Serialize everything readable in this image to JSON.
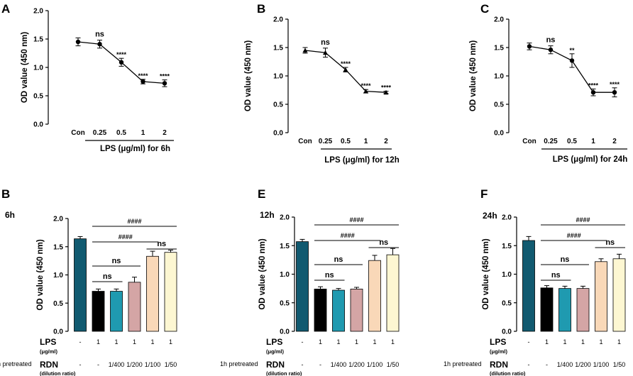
{
  "figure": {
    "line_panels": [
      {
        "letter": "A",
        "title": "",
        "xlabel": "LPS (μg/ml) for 6h",
        "ylabel": "OD value (450 nm)",
        "ticks": [
          "0.0",
          "0.5",
          "1.0",
          "1.5",
          "2.0"
        ],
        "ylim": [
          0,
          2.0
        ],
        "categories": [
          "Con",
          "0.25",
          "0.5",
          "1",
          "2"
        ],
        "values": [
          1.45,
          1.41,
          1.09,
          0.75,
          0.72
        ],
        "errors": [
          0.07,
          0.07,
          0.07,
          0.04,
          0.06
        ],
        "significance": [
          "",
          "ns",
          "****",
          "****",
          "****"
        ],
        "marker": "circle"
      },
      {
        "letter": "B",
        "title": "",
        "xlabel": "LPS (μg/ml) for 12h",
        "ylabel": "OD value (450 nm)",
        "ticks": [
          "0.0",
          "0.5",
          "1.0",
          "1.5",
          "2.0"
        ],
        "ylim": [
          0,
          2.0
        ],
        "categories": [
          "Con",
          "0.25",
          "0.5",
          "1",
          "2"
        ],
        "values": [
          1.45,
          1.41,
          1.11,
          0.73,
          0.71
        ],
        "errors": [
          0.05,
          0.08,
          0.04,
          0.03,
          0.02
        ],
        "significance": [
          "",
          "ns",
          "****",
          "****",
          "****"
        ],
        "marker": "triangle"
      },
      {
        "letter": "C",
        "title": "",
        "xlabel": "LPS (μg/ml) for 24h",
        "ylabel": "OD value (450 nm)",
        "ticks": [
          "0.0",
          "0.5",
          "1.0",
          "1.5",
          "2.0"
        ],
        "ylim": [
          0,
          2.0
        ],
        "categories": [
          "Con",
          "0.25",
          "0.5",
          "1",
          "2"
        ],
        "values": [
          1.52,
          1.46,
          1.27,
          0.71,
          0.71
        ],
        "errors": [
          0.06,
          0.07,
          0.12,
          0.06,
          0.08
        ],
        "significance": [
          "",
          "ns",
          "**",
          "****",
          "****"
        ],
        "marker": "circle"
      }
    ],
    "bar_panels": [
      {
        "letter": "B",
        "title": "6h",
        "values": [
          1.64,
          0.71,
          0.71,
          0.87,
          1.33,
          1.4
        ],
        "errors": [
          0.04,
          0.04,
          0.04,
          0.09,
          0.09,
          0.04
        ]
      },
      {
        "letter": "E",
        "title": "12h",
        "values": [
          1.57,
          0.74,
          0.72,
          0.74,
          1.24,
          1.34
        ],
        "errors": [
          0.04,
          0.04,
          0.03,
          0.03,
          0.09,
          0.11
        ]
      },
      {
        "letter": "F",
        "title": "24h",
        "values": [
          1.59,
          0.76,
          0.75,
          0.75,
          1.22,
          1.27
        ],
        "errors": [
          0.07,
          0.04,
          0.04,
          0.04,
          0.05,
          0.08
        ]
      }
    ],
    "bar_common": {
      "ylabel": "OD value (450 nm)",
      "ticks": [
        "0.0",
        "0.5",
        "1.0",
        "1.5",
        "2.0"
      ],
      "ylim": [
        0,
        2.0
      ],
      "colors": [
        "#115a70",
        "#000000",
        "#1f9ab0",
        "#d4a5a5",
        "#f9d8b8",
        "#fdf7d2"
      ],
      "lps_label": "LPS",
      "lps_unit": "(μg/ml)",
      "lps_values": [
        "-",
        "1",
        "1",
        "1",
        "1",
        "1"
      ],
      "pretreat_label": "1h pretreated",
      "rdn_label": "RDN",
      "rdn_unit": "(dilution ratio)",
      "rdn_values": [
        "-",
        "-",
        "1/400",
        "1/200",
        "1/100",
        "1/50"
      ],
      "brackets": [
        {
          "from": 1,
          "to": 5,
          "label": "####"
        },
        {
          "from": 1,
          "to": 4,
          "label": "####"
        },
        {
          "from": 4,
          "to": 5,
          "label": "ns"
        },
        {
          "from": 1,
          "to": 3,
          "label": "ns"
        },
        {
          "from": 1,
          "to": 2,
          "label": "ns"
        }
      ]
    }
  },
  "chart_data": [
    {
      "type": "line",
      "title": "A",
      "categories": [
        "Con",
        "0.25",
        "0.5",
        "1",
        "2"
      ],
      "values": [
        1.45,
        1.41,
        1.09,
        0.75,
        0.72
      ],
      "xlabel": "LPS (μg/ml) for 6h",
      "ylabel": "OD value (450 nm)",
      "ylim": [
        0,
        2.0
      ]
    },
    {
      "type": "line",
      "title": "B",
      "categories": [
        "Con",
        "0.25",
        "0.5",
        "1",
        "2"
      ],
      "values": [
        1.45,
        1.41,
        1.11,
        0.73,
        0.71
      ],
      "xlabel": "LPS (μg/ml) for 12h",
      "ylabel": "OD value (450 nm)",
      "ylim": [
        0,
        2.0
      ]
    },
    {
      "type": "line",
      "title": "C",
      "categories": [
        "Con",
        "0.25",
        "0.5",
        "1",
        "2"
      ],
      "values": [
        1.52,
        1.46,
        1.27,
        0.71,
        0.71
      ],
      "xlabel": "LPS (μg/ml) for 24h",
      "ylabel": "OD value (450 nm)",
      "ylim": [
        0,
        2.0
      ]
    },
    {
      "type": "bar",
      "title": "6h",
      "categories": [
        "LPS - / RDN -",
        "LPS 1 / RDN -",
        "LPS 1 / RDN 1/400",
        "LPS 1 / RDN 1/200",
        "LPS 1 / RDN 1/100",
        "LPS 1 / RDN 1/50"
      ],
      "values": [
        1.64,
        0.71,
        0.71,
        0.87,
        1.33,
        1.4
      ],
      "ylabel": "OD value (450 nm)",
      "ylim": [
        0,
        2.0
      ]
    },
    {
      "type": "bar",
      "title": "12h",
      "categories": [
        "LPS - / RDN -",
        "LPS 1 / RDN -",
        "LPS 1 / RDN 1/400",
        "LPS 1 / RDN 1/200",
        "LPS 1 / RDN 1/100",
        "LPS 1 / RDN 1/50"
      ],
      "values": [
        1.57,
        0.74,
        0.72,
        0.74,
        1.24,
        1.34
      ],
      "ylabel": "OD value (450 nm)",
      "ylim": [
        0,
        2.0
      ]
    },
    {
      "type": "bar",
      "title": "24h",
      "categories": [
        "LPS - / RDN -",
        "LPS 1 / RDN -",
        "LPS 1 / RDN 1/400",
        "LPS 1 / RDN 1/200",
        "LPS 1 / RDN 1/100",
        "LPS 1 / RDN 1/50"
      ],
      "values": [
        1.59,
        0.76,
        0.75,
        0.75,
        1.22,
        1.27
      ],
      "ylabel": "OD value (450 nm)",
      "ylim": [
        0,
        2.0
      ]
    }
  ]
}
